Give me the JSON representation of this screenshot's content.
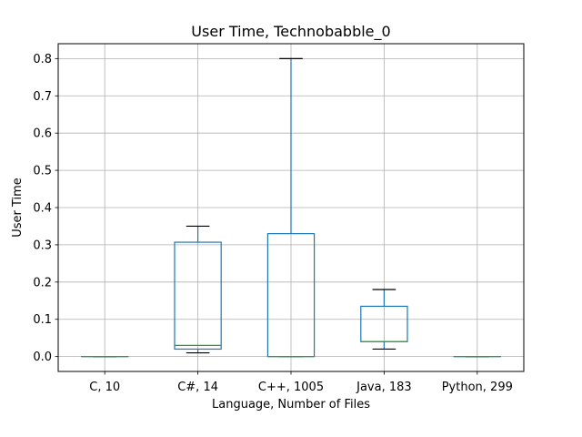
{
  "chart_data": {
    "type": "box",
    "title": "User Time, Technobabble_0",
    "xlabel": "Language, Number of Files",
    "ylabel": "User Time",
    "ylim": [
      -0.04,
      0.84
    ],
    "yticks": [
      0.0,
      0.1,
      0.2,
      0.3,
      0.4,
      0.5,
      0.6,
      0.7,
      0.8
    ],
    "ytick_labels": [
      "0.0",
      "0.1",
      "0.2",
      "0.3",
      "0.4",
      "0.5",
      "0.6",
      "0.7",
      "0.8"
    ],
    "grid": true,
    "categories": [
      "C, 10",
      "C#, 14",
      "C++, 1005",
      "Java, 183",
      "Python, 299"
    ],
    "boxes": [
      {
        "whisker_low": 0.0,
        "q1": 0.0,
        "median": 0.0,
        "q3": 0.0,
        "whisker_high": 0.0
      },
      {
        "whisker_low": 0.01,
        "q1": 0.02,
        "median": 0.03,
        "q3": 0.307,
        "whisker_high": 0.35
      },
      {
        "whisker_low": 0.0,
        "q1": 0.0,
        "median": 0.0,
        "q3": 0.33,
        "whisker_high": 0.8
      },
      {
        "whisker_low": 0.02,
        "q1": 0.04,
        "median": 0.04,
        "q3": 0.135,
        "whisker_high": 0.18
      },
      {
        "whisker_low": 0.0,
        "q1": 0.0,
        "median": 0.0,
        "q3": 0.0,
        "whisker_high": 0.0
      }
    ],
    "colors": {
      "box": "#1f77b4",
      "median": "#2ca02c",
      "cap": "#000000",
      "grid": "#b0b0b0",
      "axes": "#000000"
    }
  }
}
